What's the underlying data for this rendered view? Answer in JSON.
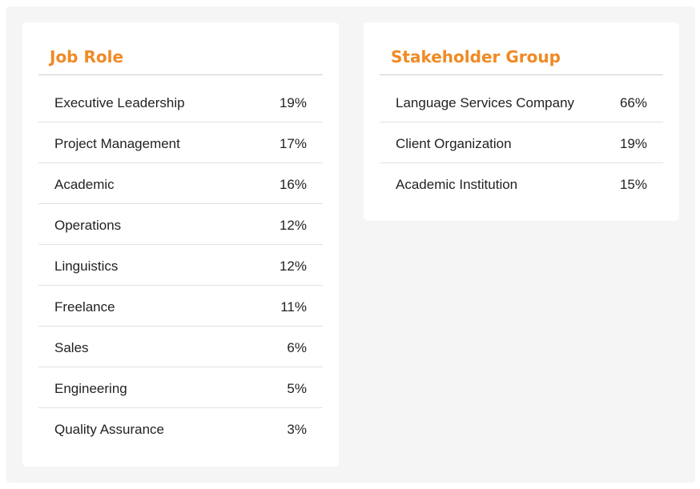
{
  "job_role": {
    "title": "Job Role",
    "rows": [
      {
        "label": "Executive Leadership",
        "value": "19%"
      },
      {
        "label": "Project Management",
        "value": "17%"
      },
      {
        "label": "Academic",
        "value": "16%"
      },
      {
        "label": "Operations",
        "value": "12%"
      },
      {
        "label": "Linguistics",
        "value": "12%"
      },
      {
        "label": "Freelance",
        "value": "11%"
      },
      {
        "label": "Sales",
        "value": "6%"
      },
      {
        "label": "Engineering",
        "value": "5%"
      },
      {
        "label": "Quality Assurance",
        "value": "3%"
      }
    ]
  },
  "stakeholder_group": {
    "title": "Stakeholder Group",
    "rows": [
      {
        "label": "Language Services Company",
        "value": "66%"
      },
      {
        "label": "Client Organization",
        "value": "19%"
      },
      {
        "label": "Academic Institution",
        "value": "15%"
      }
    ]
  },
  "colors": {
    "accent": "#f08a24",
    "page_background": "#f5f5f5",
    "card_background": "#ffffff",
    "text": "#222222"
  }
}
